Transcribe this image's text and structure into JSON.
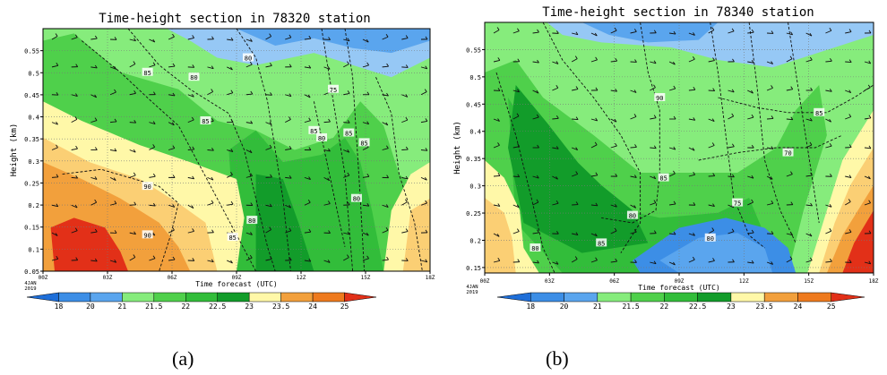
{
  "chart_data": [
    {
      "type": "heatmap",
      "title": "Time-height section in 78320 station",
      "xlabel": "Time forecast (UTC)",
      "ylabel": "Height (km)",
      "x_ticks": [
        "00Z",
        "03Z",
        "06Z",
        "09Z",
        "12Z",
        "15Z",
        "18Z"
      ],
      "x_start_label": [
        "4JAN",
        "2019"
      ],
      "xlim": [
        0,
        18
      ],
      "ylim": [
        0.05,
        0.6
      ],
      "y_ticks": [
        0.05,
        0.1,
        0.15,
        0.2,
        0.25,
        0.3,
        0.35,
        0.4,
        0.45,
        0.5,
        0.55
      ],
      "contour_labels": [
        "85",
        "80",
        "80",
        "75",
        "85",
        "85",
        "80",
        "85",
        "85",
        "90",
        "80",
        "90",
        "85",
        "80"
      ],
      "colorbar_ticks": [
        "18",
        "20",
        "21",
        "21.5",
        "22",
        "22.5",
        "23",
        "23.5",
        "24",
        "25"
      ],
      "caption": "(a)"
    },
    {
      "type": "heatmap",
      "title": "Time-height section in 78340 station",
      "xlabel": "Time forecast (UTC)",
      "ylabel": "Height (km)",
      "x_ticks": [
        "00Z",
        "03Z",
        "06Z",
        "09Z",
        "12Z",
        "15Z",
        "18Z"
      ],
      "x_start_label": [
        "4JAN",
        "2019"
      ],
      "xlim": [
        0,
        18
      ],
      "ylim": [
        0.14,
        0.6
      ],
      "y_ticks": [
        0.15,
        0.2,
        0.25,
        0.3,
        0.35,
        0.4,
        0.45,
        0.5,
        0.55
      ],
      "contour_labels": [
        "90",
        "85",
        "70",
        "85",
        "80",
        "75",
        "80",
        "85",
        "80"
      ],
      "colorbar_ticks": [
        "18",
        "20",
        "21",
        "21.5",
        "22",
        "22.5",
        "23",
        "23.5",
        "24",
        "25"
      ],
      "caption": "(b)"
    }
  ],
  "colors": {
    "bins": [
      "#1e6ed8",
      "#3c8ee6",
      "#5aa5ee",
      "#96c8f5",
      "#86ec7c",
      "#4fd04b",
      "#32bd3a",
      "#129c2a",
      "#fff8a8",
      "#fbcf74",
      "#f2a03c",
      "#ee7a1e",
      "#e23018"
    ]
  }
}
